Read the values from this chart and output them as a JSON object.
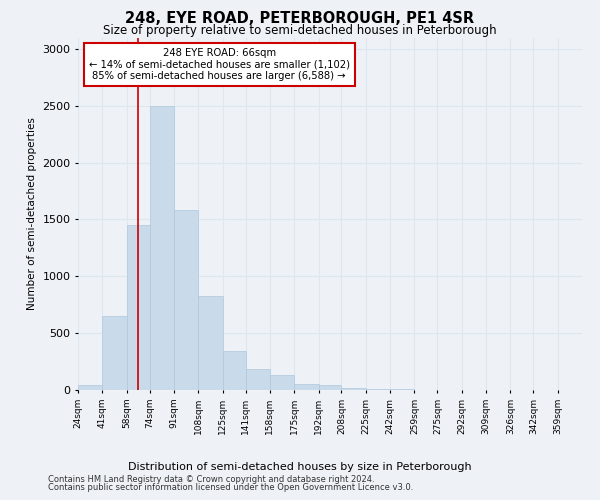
{
  "title": "248, EYE ROAD, PETERBOROUGH, PE1 4SR",
  "subtitle": "Size of property relative to semi-detached houses in Peterborough",
  "xlabel": "Distribution of semi-detached houses by size in Peterborough",
  "ylabel": "Number of semi-detached properties",
  "footer1": "Contains HM Land Registry data © Crown copyright and database right 2024.",
  "footer2": "Contains public sector information licensed under the Open Government Licence v3.0.",
  "annotation_title": "248 EYE ROAD: 66sqm",
  "annotation_line1": "← 14% of semi-detached houses are smaller (1,102)",
  "annotation_line2": "85% of semi-detached houses are larger (6,588) →",
  "property_size": 66,
  "bar_color": "#c9daea",
  "bar_edgecolor": "#b0c8dc",
  "redline_color": "#cc0000",
  "annotation_box_facecolor": "#ffffff",
  "annotation_box_edgecolor": "#cc0000",
  "grid_color": "#dce8f0",
  "background_color": "#eef2f7",
  "categories": [
    "24sqm",
    "41sqm",
    "58sqm",
    "74sqm",
    "91sqm",
    "108sqm",
    "125sqm",
    "141sqm",
    "158sqm",
    "175sqm",
    "192sqm",
    "208sqm",
    "225sqm",
    "242sqm",
    "259sqm",
    "275sqm",
    "292sqm",
    "309sqm",
    "326sqm",
    "342sqm",
    "359sqm"
  ],
  "bin_edges": [
    24,
    41,
    58,
    74,
    91,
    108,
    125,
    141,
    158,
    175,
    192,
    208,
    225,
    242,
    259,
    275,
    292,
    309,
    326,
    342,
    359,
    376
  ],
  "values": [
    40,
    650,
    1450,
    2500,
    1580,
    830,
    340,
    185,
    130,
    55,
    45,
    20,
    10,
    5,
    2,
    2,
    1,
    1,
    1,
    1,
    1
  ],
  "ylim": [
    0,
    3100
  ],
  "yticks": [
    0,
    500,
    1000,
    1500,
    2000,
    2500,
    3000
  ]
}
